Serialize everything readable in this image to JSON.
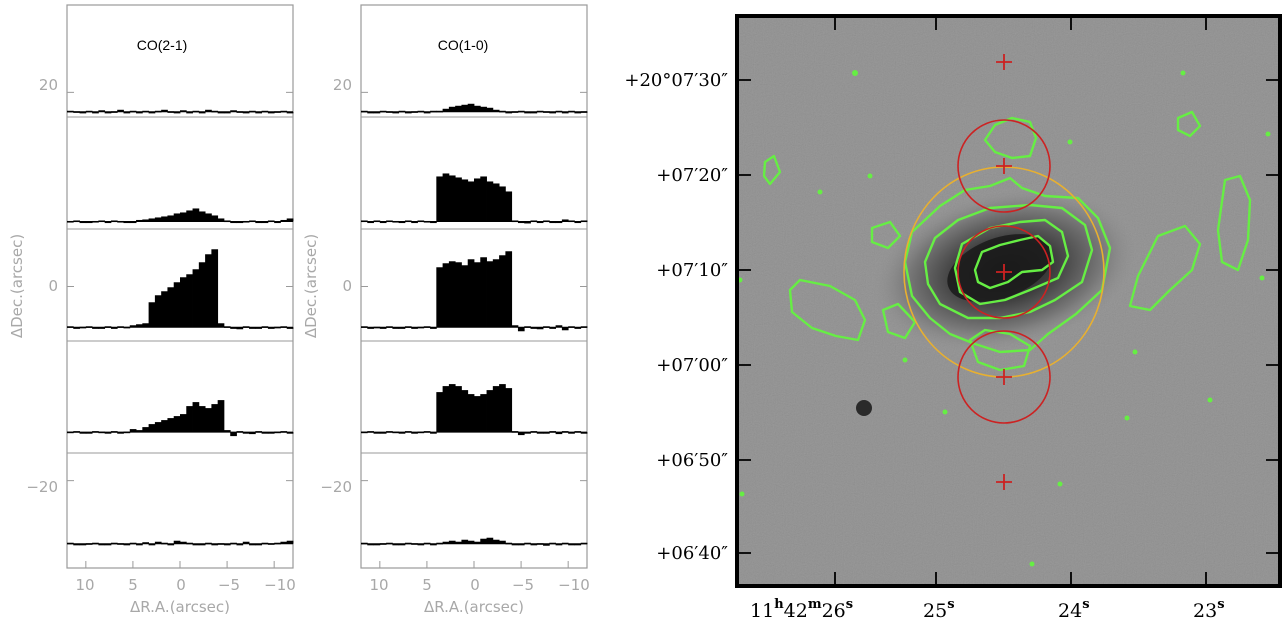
{
  "spectra_panels": [
    {
      "title": "CO(2-1)",
      "y_ticks": [
        "20",
        "0",
        "−20"
      ],
      "x_ticks": [
        "10",
        "5",
        "0",
        "−5",
        "−10"
      ],
      "xlabel": "ΔR.A.(arcsec)",
      "ylabel": "ΔDec.(arcsec)"
    },
    {
      "title": "CO(1-0)",
      "y_ticks": [
        "20",
        "0",
        "−20"
      ],
      "x_ticks": [
        "10",
        "5",
        "0",
        "−5",
        "−10"
      ],
      "xlabel": "ΔR.A.(arcsec)",
      "ylabel": "ΔDec.(arcsec)"
    }
  ],
  "image_panel": {
    "ra_ticks": [
      {
        "main": "11",
        "h": "h",
        "mid": "42",
        "m": "m",
        "sec": "26",
        "s": "s"
      },
      {
        "sec": "25",
        "s": "s"
      },
      {
        "sec": "24",
        "s": "s"
      },
      {
        "sec": "23",
        "s": "s"
      }
    ],
    "dec_ticks": [
      "+20°07′30″",
      "+07′20″",
      "+07′10″",
      "+07′00″",
      "+06′50″",
      "+06′40″"
    ],
    "colors": {
      "contour": "#66ee44",
      "beam_circle": "#cc2222",
      "large_circle": "#e8b030",
      "background": "#9a9a9a",
      "frame": "#000000"
    }
  },
  "chart_data": [
    {
      "type": "bar",
      "title": "CO(2-1)",
      "xlabel": "ΔR.A.(arcsec)",
      "ylabel": "ΔDec.(arcsec)",
      "xlim": [
        12,
        -12
      ],
      "ylim": [
        -29,
        29
      ],
      "grid": false,
      "series": [
        {
          "offset": 18,
          "values": [
            0.1,
            0.05,
            -0.1,
            0.1,
            0.0,
            0.15,
            -0.1,
            0.05,
            0.2,
            -0.05,
            0.1,
            0.0,
            0.1,
            -0.15,
            0.1,
            0.2,
            0.05,
            -0.1,
            0.15,
            0.0,
            0.1,
            -0.05,
            0.2,
            0.1,
            0.0,
            -0.1,
            0.15,
            0.05,
            -0.05,
            0.1,
            0.0,
            0.1,
            -0.1,
            0.05,
            0.1,
            0.0
          ]
        },
        {
          "offset": 6.7,
          "values": [
            0.05,
            0.1,
            0.0,
            -0.1,
            0.05,
            0.1,
            0.0,
            0.1,
            0.05,
            -0.1,
            0.0,
            0.15,
            0.2,
            0.3,
            0.4,
            0.5,
            0.6,
            0.8,
            0.9,
            1.1,
            1.3,
            1.0,
            0.8,
            0.6,
            0.3,
            0.1,
            0.0,
            -0.1,
            0.05,
            0.1,
            0.0,
            -0.05,
            0.1,
            0.0,
            0.15,
            0.3
          ]
        },
        {
          "offset": -4.2,
          "values": [
            0.1,
            -0.1,
            0.05,
            0.1,
            0.0,
            -0.05,
            0.1,
            0.0,
            0.1,
            0.05,
            0.2,
            0.3,
            0.4,
            2.5,
            3.2,
            3.6,
            4.0,
            4.5,
            5.0,
            5.3,
            5.8,
            6.5,
            7.3,
            7.8,
            0.4,
            0.1,
            0.0,
            -0.2,
            0.1,
            -0.1,
            0.0,
            0.1,
            -0.1,
            0.05,
            0.1,
            -0.1
          ]
        },
        {
          "offset": -15,
          "values": [
            0.05,
            0.1,
            -0.05,
            0.0,
            0.1,
            0.05,
            -0.1,
            0.1,
            0.0,
            0.05,
            0.3,
            0.2,
            0.5,
            0.8,
            1.0,
            1.2,
            1.4,
            1.6,
            1.8,
            2.6,
            3.0,
            2.6,
            2.4,
            2.8,
            3.2,
            0.2,
            -0.4,
            0.1,
            0.0,
            -0.2,
            0.1,
            0.0,
            -0.1,
            0.05,
            0.1,
            0.0
          ]
        },
        {
          "offset": -26.5,
          "values": [
            0.1,
            0.0,
            -0.1,
            0.05,
            0.1,
            -0.05,
            0.0,
            0.1,
            0.05,
            -0.1,
            0.1,
            0.0,
            0.15,
            -0.05,
            0.2,
            0.1,
            0.0,
            0.3,
            0.2,
            0.1,
            0.0,
            -0.1,
            0.1,
            0.0,
            0.05,
            -0.15,
            0.1,
            0.0,
            0.2,
            -0.1,
            0.0,
            0.1,
            0.05,
            0.1,
            0.2,
            0.3
          ]
        }
      ]
    },
    {
      "type": "bar",
      "title": "CO(1-0)",
      "xlabel": "ΔR.A.(arcsec)",
      "ylabel": "ΔDec.(arcsec)",
      "xlim": [
        12,
        -12
      ],
      "ylim": [
        -29,
        29
      ],
      "grid": false,
      "series": [
        {
          "offset": 18,
          "values": [
            0.1,
            0.0,
            -0.1,
            0.1,
            0.05,
            0.0,
            0.1,
            -0.1,
            0.05,
            0.1,
            0.0,
            0.1,
            0.1,
            0.3,
            0.5,
            0.6,
            0.7,
            0.8,
            0.6,
            0.5,
            0.4,
            0.2,
            0.1,
            0.0,
            0.05,
            0.1,
            -0.1,
            0.0,
            0.1,
            0.05,
            0.0,
            0.1,
            -0.05,
            0.1,
            0.0,
            0.05
          ]
        },
        {
          "offset": 6.7,
          "values": [
            0.1,
            -0.05,
            0.1,
            0.0,
            0.1,
            0.05,
            -0.1,
            0.1,
            0.0,
            0.1,
            0.05,
            0.0,
            4.5,
            4.8,
            4.6,
            4.4,
            4.2,
            4.0,
            4.3,
            4.5,
            4.0,
            3.8,
            3.5,
            3.0,
            0.1,
            0.0,
            -0.2,
            0.1,
            0.0,
            0.1,
            -0.1,
            0.0,
            0.2,
            0.1,
            0.0,
            0.1
          ]
        },
        {
          "offset": -4.2,
          "values": [
            0.1,
            0.0,
            0.05,
            -0.1,
            0.1,
            0.0,
            -0.05,
            0.1,
            0.0,
            0.05,
            0.1,
            0.0,
            6.0,
            6.4,
            6.6,
            6.5,
            6.2,
            6.8,
            6.5,
            7.0,
            6.6,
            6.8,
            7.2,
            7.6,
            0.2,
            -0.4,
            0.1,
            0.0,
            -0.2,
            0.1,
            0.0,
            0.2,
            -0.3,
            0.1,
            0.0,
            0.1
          ]
        },
        {
          "offset": -15,
          "values": [
            0.05,
            0.1,
            -0.05,
            0.0,
            0.1,
            0.05,
            -0.1,
            0.1,
            0.0,
            0.05,
            0.1,
            0.0,
            4.0,
            4.6,
            4.8,
            4.6,
            4.2,
            3.8,
            3.6,
            3.8,
            4.2,
            4.6,
            4.8,
            4.4,
            0.1,
            -0.3,
            0.0,
            0.1,
            -0.1,
            0.0,
            0.1,
            -0.2,
            0.1,
            0.0,
            0.1,
            -0.05
          ]
        },
        {
          "offset": -26.5,
          "values": [
            0.1,
            0.0,
            -0.1,
            0.05,
            0.1,
            -0.05,
            0.0,
            0.1,
            0.05,
            -0.1,
            0.1,
            0.0,
            0.1,
            0.2,
            0.3,
            0.2,
            0.4,
            0.3,
            0.2,
            0.5,
            0.6,
            0.4,
            0.3,
            0.1,
            0.0,
            -0.1,
            0.1,
            0.0,
            0.05,
            -0.2,
            0.1,
            0.0,
            0.1,
            -0.1,
            0.0,
            0.1
          ]
        }
      ]
    }
  ]
}
